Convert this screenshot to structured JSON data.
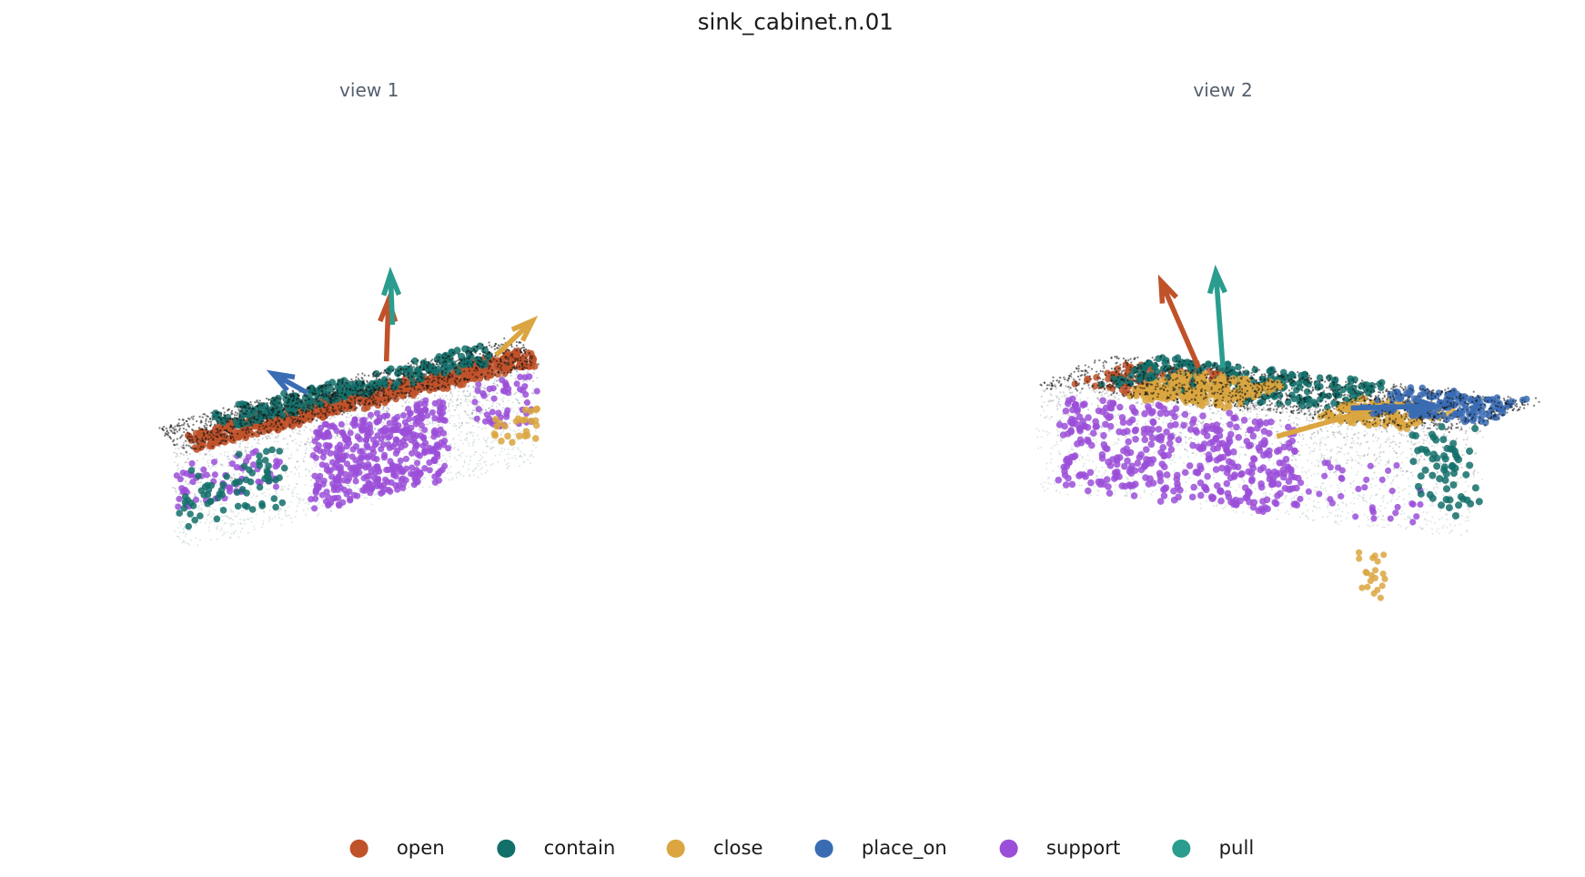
{
  "title": "sink_cabinet.n.01",
  "views": [
    {
      "title": "view 1"
    },
    {
      "title": "view 2"
    }
  ],
  "legend": [
    {
      "label": "open",
      "color": "#c0522a"
    },
    {
      "label": "contain",
      "color": "#136f6a"
    },
    {
      "label": "close",
      "color": "#dba640"
    },
    {
      "label": "place_on",
      "color": "#3a6cb4"
    },
    {
      "label": "support",
      "color": "#9b4fd8"
    },
    {
      "label": "pull",
      "color": "#2a9d8f"
    }
  ]
}
